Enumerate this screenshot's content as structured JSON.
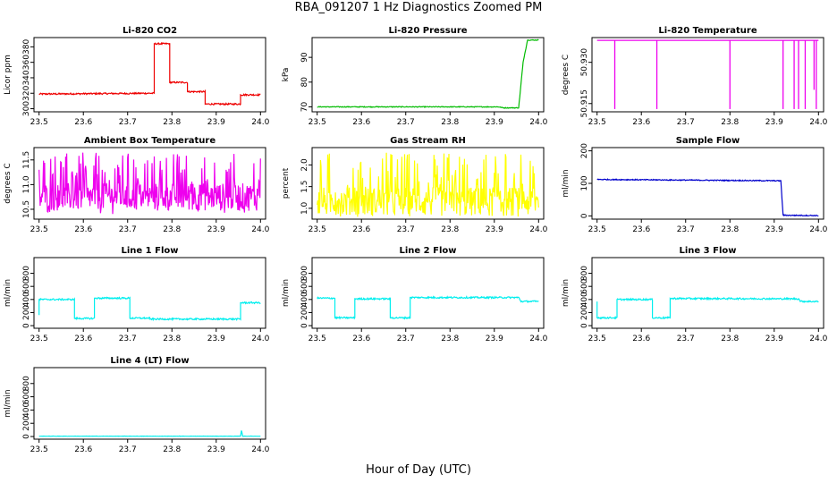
{
  "figure": {
    "title": "RBA_091207  1 Hz Diagnostics Zoomed PM",
    "xlabel": "Hour of Day (UTC)"
  },
  "chart_data": [
    {
      "type": "line",
      "title": "Li-820 CO2",
      "ylabel": "Licor ppm",
      "color": "#ee0000",
      "xlim": [
        23.5,
        24.0
      ],
      "xticks": [
        "23.5",
        "23.6",
        "23.7",
        "23.8",
        "23.9",
        "24.0"
      ],
      "ylim": [
        296,
        392
      ],
      "yticks": [
        "300",
        "320",
        "340",
        "360",
        "380"
      ],
      "noise": 1.0,
      "series": [
        {
          "x": [
            23.5,
            23.76,
            23.76,
            23.795,
            23.795,
            23.835,
            23.835,
            23.875,
            23.875,
            23.955,
            23.955,
            24.0
          ],
          "y": [
            319,
            320,
            384,
            384,
            334,
            334,
            322,
            322,
            306,
            306,
            318,
            318
          ]
        }
      ]
    },
    {
      "type": "line",
      "title": "Li-820 Pressure",
      "ylabel": "kPa",
      "color": "#00bb00",
      "xlim": [
        23.5,
        24.0
      ],
      "xticks": [
        "23.5",
        "23.6",
        "23.7",
        "23.8",
        "23.9",
        "24.0"
      ],
      "ylim": [
        68,
        98
      ],
      "yticks": [
        "70",
        "80",
        "90"
      ],
      "noise": 0.15,
      "series": [
        {
          "x": [
            23.5,
            23.91,
            23.92,
            23.955,
            23.965,
            23.975,
            24.0
          ],
          "y": [
            70,
            70,
            69.6,
            69.6,
            88,
            97,
            97
          ]
        }
      ]
    },
    {
      "type": "line",
      "title": "Li-820 Temperature",
      "ylabel": "degrees C",
      "color": "#ee00ee",
      "xlim": [
        23.5,
        24.0
      ],
      "xticks": [
        "23.5",
        "23.6",
        "23.7",
        "23.8",
        "23.9",
        "24.0"
      ],
      "ylim": [
        50.912,
        50.939
      ],
      "yticks": [
        "50.915",
        "50.930"
      ],
      "noise": 0,
      "series": [
        {
          "x": [
            23.5,
            24.0
          ],
          "y": [
            50.938,
            50.938
          ]
        }
      ],
      "spikes": {
        "x": [
          23.54,
          23.635,
          23.8,
          23.92,
          23.945,
          23.955,
          23.97,
          23.99,
          23.995
        ],
        "y": [
          50.913,
          50.913,
          50.913,
          50.913,
          50.913,
          50.913,
          50.913,
          50.92,
          50.913
        ]
      }
    },
    {
      "type": "line",
      "title": "Ambient Box Temperature",
      "ylabel": "degrees C",
      "color": "#ee00ee",
      "xlim": [
        23.5,
        24.0
      ],
      "xticks": [
        "23.5",
        "23.6",
        "23.7",
        "23.8",
        "23.9",
        "24.0"
      ],
      "ylim": [
        10.3,
        11.75
      ],
      "yticks": [
        "10.5",
        "11.0",
        "11.5"
      ],
      "noise_band": [
        10.4,
        11.65
      ],
      "center": 10.75
    },
    {
      "type": "line",
      "title": "Gas Stream RH",
      "ylabel": "percent",
      "color": "#ffff00",
      "xlim": [
        23.5,
        24.0
      ],
      "xticks": [
        "23.5",
        "23.6",
        "23.7",
        "23.8",
        "23.9",
        "24.0"
      ],
      "ylim": [
        0.75,
        2.4
      ],
      "yticks": [
        "1.0",
        "1.5",
        "2.0"
      ],
      "noise_band": [
        0.8,
        2.3
      ],
      "center": 1.15
    },
    {
      "type": "line",
      "title": "Sample Flow",
      "ylabel": "ml/min",
      "color": "#0000cc",
      "xlim": [
        23.5,
        24.0
      ],
      "xticks": [
        "23.5",
        "23.6",
        "23.7",
        "23.8",
        "23.9",
        "24.0"
      ],
      "ylim": [
        -10,
        210
      ],
      "yticks": [
        "0",
        "100",
        "200"
      ],
      "noise": 1.5,
      "series": [
        {
          "x": [
            23.5,
            23.91,
            23.915,
            23.92,
            24.0
          ],
          "y": [
            112,
            108,
            108,
            2,
            1
          ]
        }
      ]
    },
    {
      "type": "line",
      "title": "Line 1 Flow",
      "ylabel": "ml/min",
      "color": "#00eeee",
      "xlim": [
        23.5,
        24.0
      ],
      "xticks": [
        "23.5",
        "23.6",
        "23.7",
        "23.8",
        "23.9",
        "24.0"
      ],
      "ylim": [
        -40,
        1040
      ],
      "yticks": [
        "0",
        "200",
        "400",
        "600",
        "800"
      ],
      "noise": 12,
      "series": [
        {
          "x": [
            23.5,
            23.5,
            23.58,
            23.58,
            23.625,
            23.625,
            23.705,
            23.705,
            23.75,
            23.75,
            23.955,
            23.955,
            24.0
          ],
          "y": [
            160,
            400,
            400,
            110,
            110,
            420,
            420,
            115,
            115,
            100,
            100,
            350,
            350
          ]
        }
      ]
    },
    {
      "type": "line",
      "title": "Line 2 Flow",
      "ylabel": "ml/min",
      "color": "#00eeee",
      "xlim": [
        23.5,
        24.0
      ],
      "xticks": [
        "23.5",
        "23.6",
        "23.7",
        "23.8",
        "23.9",
        "24.0"
      ],
      "ylim": [
        -40,
        1040
      ],
      "yticks": [
        "0",
        "200",
        "400",
        "600",
        "800"
      ],
      "noise": 12,
      "series": [
        {
          "x": [
            23.5,
            23.54,
            23.54,
            23.585,
            23.585,
            23.665,
            23.665,
            23.71,
            23.71,
            23.955,
            23.96,
            24.0
          ],
          "y": [
            420,
            420,
            120,
            120,
            410,
            410,
            120,
            120,
            430,
            430,
            370,
            370
          ]
        }
      ]
    },
    {
      "type": "line",
      "title": "Line 3 Flow",
      "ylabel": "ml/min",
      "color": "#00eeee",
      "xlim": [
        23.5,
        24.0
      ],
      "xticks": [
        "23.5",
        "23.6",
        "23.7",
        "23.8",
        "23.9",
        "24.0"
      ],
      "ylim": [
        -40,
        1040
      ],
      "yticks": [
        "0",
        "200",
        "400",
        "600",
        "800"
      ],
      "noise": 12,
      "series": [
        {
          "x": [
            23.5,
            23.5,
            23.545,
            23.545,
            23.625,
            23.625,
            23.665,
            23.665,
            23.955,
            23.96,
            24.0
          ],
          "y": [
            380,
            120,
            120,
            400,
            400,
            120,
            120,
            415,
            410,
            370,
            370
          ]
        }
      ]
    },
    {
      "type": "line",
      "title": "Line 4 (LT) Flow",
      "ylabel": "ml/min",
      "color": "#00eeee",
      "xlim": [
        23.5,
        24.0
      ],
      "xticks": [
        "23.5",
        "23.6",
        "23.7",
        "23.8",
        "23.9",
        "24.0"
      ],
      "ylim": [
        -40,
        1040
      ],
      "yticks": [
        "0",
        "200",
        "400",
        "600",
        "800"
      ],
      "noise": 2,
      "series": [
        {
          "x": [
            23.5,
            23.955,
            23.957,
            23.96,
            24.0
          ],
          "y": [
            5,
            5,
            90,
            5,
            5
          ]
        }
      ]
    }
  ]
}
